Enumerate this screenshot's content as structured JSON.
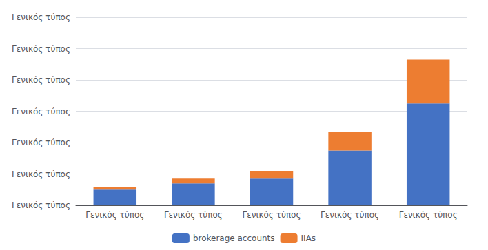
{
  "chart_data": {
    "type": "bar",
    "stacked": true,
    "categories": [
      "Γενικός τύπος",
      "Γενικός τύπος",
      "Γενικός τύπος",
      "Γενικός τύπος",
      "Γενικός τύπος"
    ],
    "series": [
      {
        "name": "brokerage accounts",
        "color": "#4472C4",
        "values": [
          1.0,
          1.4,
          1.7,
          3.5,
          6.5
        ]
      },
      {
        "name": "IIAs",
        "color": "#ED7D31",
        "values": [
          0.15,
          0.3,
          0.45,
          1.2,
          2.8
        ]
      }
    ],
    "ylim": [
      0,
      12
    ],
    "yticks": [
      {
        "value": 0,
        "label": "Γενικός τύπος"
      },
      {
        "value": 2,
        "label": "Γενικός τύπος"
      },
      {
        "value": 4,
        "label": "Γενικός τύπος"
      },
      {
        "value": 6,
        "label": "Γενικός τύπος"
      },
      {
        "value": 8,
        "label": "Γενικός τύπος"
      },
      {
        "value": 10,
        "label": "Γενικός τύπος"
      },
      {
        "value": 12,
        "label": "Γενικός τύπος"
      }
    ],
    "grid": true,
    "legend": "bottom"
  }
}
